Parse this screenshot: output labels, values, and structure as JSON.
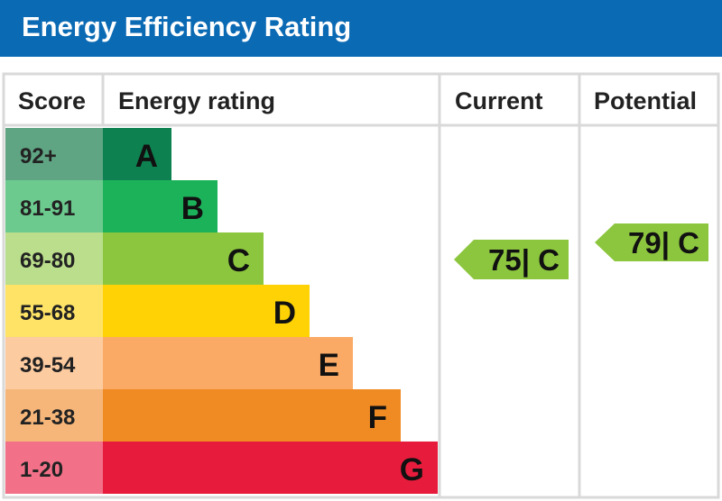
{
  "title": "Energy Efficiency Rating",
  "columns": {
    "score": "Score",
    "rating": "Energy rating",
    "current": "Current",
    "potential": "Potential"
  },
  "chart_data": {
    "type": "bar",
    "title": "Energy Efficiency Rating",
    "bands": [
      {
        "score": "92+",
        "letter": "A",
        "color": "#0e8150",
        "score_bg": "#5fa583"
      },
      {
        "score": "81-91",
        "letter": "B",
        "color": "#1cb25a",
        "score_bg": "#6cca8e"
      },
      {
        "score": "69-80",
        "letter": "C",
        "color": "#8cc63e",
        "score_bg": "#bade8b"
      },
      {
        "score": "55-68",
        "letter": "D",
        "color": "#fed204",
        "score_bg": "#fee366"
      },
      {
        "score": "39-54",
        "letter": "E",
        "color": "#fbaa65",
        "score_bg": "#fdcba0"
      },
      {
        "score": "21-38",
        "letter": "F",
        "color": "#f08a23",
        "score_bg": "#f6b67a"
      },
      {
        "score": "1-20",
        "letter": "G",
        "color": "#e71c3c",
        "score_bg": "#f27189"
      }
    ],
    "current": {
      "value": 75,
      "band": "C",
      "label": "75| C",
      "color": "#8cc63e"
    },
    "potential": {
      "value": 79,
      "band": "C",
      "label": "79| C",
      "color": "#8cc63e"
    }
  }
}
